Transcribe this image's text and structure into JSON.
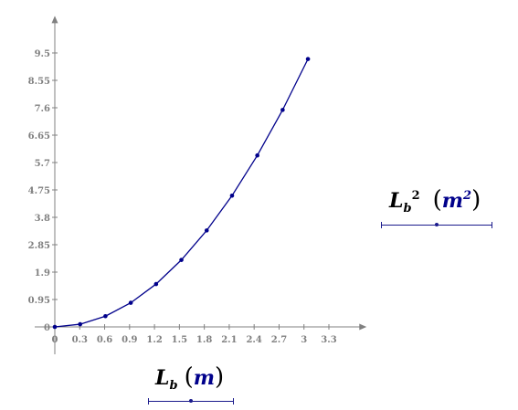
{
  "chart_data": {
    "type": "line",
    "x": [
      0,
      0.3048,
      0.6096,
      0.9144,
      1.2192,
      1.524,
      1.8288,
      2.1336,
      2.4384,
      2.7432,
      3.048
    ],
    "series": [
      {
        "values": [
          0,
          0.093,
          0.372,
          0.836,
          1.486,
          2.323,
          3.345,
          4.552,
          5.946,
          7.525,
          9.29
        ]
      }
    ],
    "xticks": [
      "0",
      "0.3",
      "0.6",
      "0.9",
      "1.2",
      "1.5",
      "1.8",
      "2.1",
      "2.4",
      "2.7",
      "3",
      "3.3"
    ],
    "yticks": [
      "0",
      "0.95",
      "1.9",
      "2.85",
      "3.8",
      "4.75",
      "5.7",
      "6.65",
      "7.6",
      "8.55",
      "9.5"
    ],
    "xlim": [
      0,
      3.6
    ],
    "ylim": [
      0,
      10.5
    ],
    "line_color": "#00008b",
    "x_axis_label": {
      "var": "L",
      "sub": "b",
      "unit": "m"
    },
    "y_axis_label": {
      "var": "L",
      "sub": "b",
      "sup": "2",
      "unit": "m",
      "unit_sup": "2"
    }
  }
}
